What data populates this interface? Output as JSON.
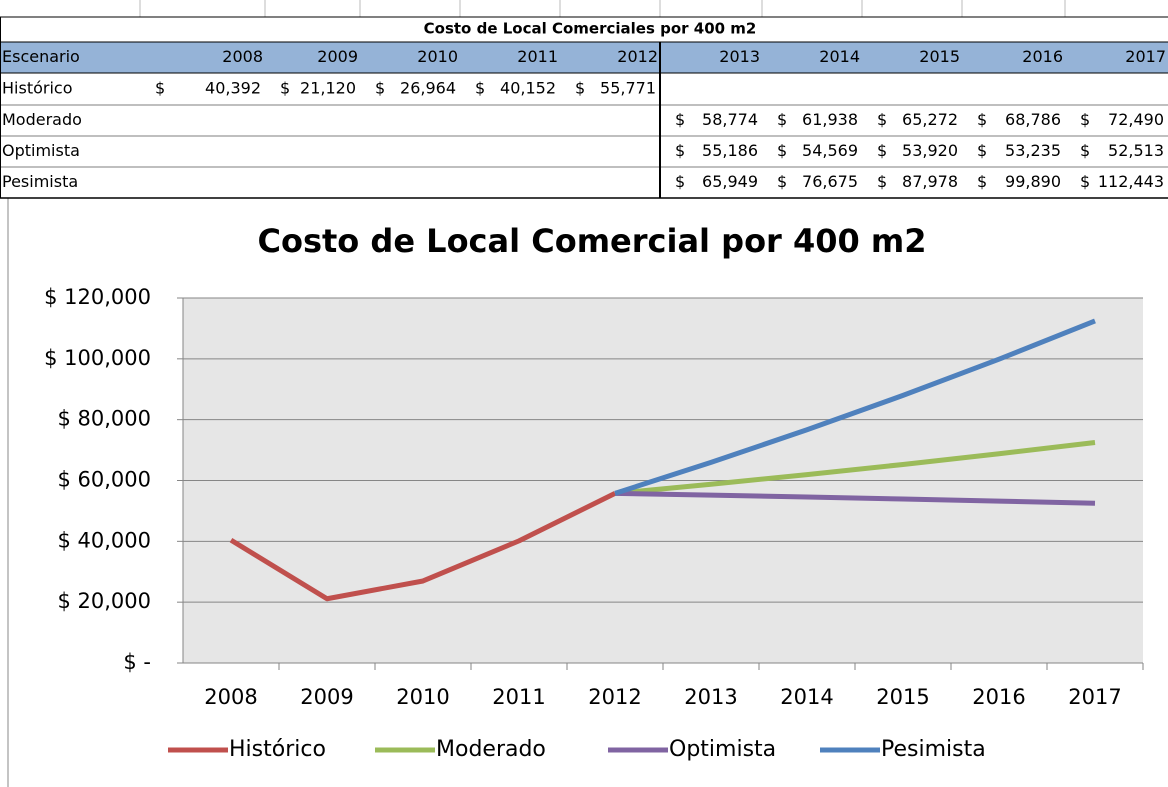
{
  "table": {
    "title": "Costo de Local Comerciales por 400 m2",
    "header": [
      "Escenario",
      "2008",
      "2009",
      "2010",
      "2011",
      "2012",
      "2013",
      "2014",
      "2015",
      "2016",
      "2017"
    ],
    "rows": [
      {
        "label": "Histórico",
        "cells": [
          [
            "$",
            "40,392"
          ],
          [
            "$",
            "21,120"
          ],
          [
            "$",
            "26,964"
          ],
          [
            "$",
            "40,152"
          ],
          [
            "$",
            "55,771"
          ],
          null,
          null,
          null,
          null,
          null
        ]
      },
      {
        "label": "Moderado",
        "cells": [
          null,
          null,
          null,
          null,
          null,
          [
            "$",
            "58,774"
          ],
          [
            "$",
            "61,938"
          ],
          [
            "$",
            "65,272"
          ],
          [
            "$",
            "68,786"
          ],
          [
            "$",
            "72,490"
          ]
        ]
      },
      {
        "label": "Optimista",
        "cells": [
          null,
          null,
          null,
          null,
          null,
          [
            "$",
            "55,186"
          ],
          [
            "$",
            "54,569"
          ],
          [
            "$",
            "53,920"
          ],
          [
            "$",
            "53,235"
          ],
          [
            "$",
            "52,513"
          ]
        ]
      },
      {
        "label": "Pesimista",
        "cells": [
          null,
          null,
          null,
          null,
          null,
          [
            "$",
            "65,949"
          ],
          [
            "$",
            "76,675"
          ],
          [
            "$",
            "87,978"
          ],
          [
            "$",
            "99,890"
          ],
          [
            "$",
            "112,443"
          ]
        ]
      }
    ]
  },
  "chart_data": {
    "type": "line",
    "title": "Costo de Local Comercial por 400 m2",
    "categories": [
      "2008",
      "2009",
      "2010",
      "2011",
      "2012",
      "2013",
      "2014",
      "2015",
      "2016",
      "2017"
    ],
    "series": [
      {
        "name": "Histórico",
        "color": "#c0504d",
        "values": [
          40392,
          21120,
          26964,
          40152,
          55771,
          null,
          null,
          null,
          null,
          null
        ]
      },
      {
        "name": "Moderado",
        "color": "#9bbb59",
        "values": [
          null,
          null,
          null,
          null,
          55771,
          58774,
          61938,
          65272,
          68786,
          72490
        ]
      },
      {
        "name": "Optimista",
        "color": "#8064a2",
        "values": [
          null,
          null,
          null,
          null,
          55771,
          55186,
          54569,
          53920,
          53235,
          52513
        ]
      },
      {
        "name": "Pesimista",
        "color": "#4f81bd",
        "values": [
          null,
          null,
          null,
          null,
          55771,
          65949,
          76675,
          87978,
          99890,
          112443
        ]
      }
    ],
    "ylim": [
      0,
      120000
    ],
    "yticks": [
      {
        "value": 0,
        "label": "$ -"
      },
      {
        "value": 20000,
        "label": "$ 20,000"
      },
      {
        "value": 40000,
        "label": "$ 40,000"
      },
      {
        "value": 60000,
        "label": "$ 60,000"
      },
      {
        "value": 80000,
        "label": "$ 80,000"
      },
      {
        "value": 100000,
        "label": "$ 100,000"
      },
      {
        "value": 120000,
        "label": "$ 120,000"
      }
    ],
    "grid": true,
    "legend": "bottom"
  }
}
